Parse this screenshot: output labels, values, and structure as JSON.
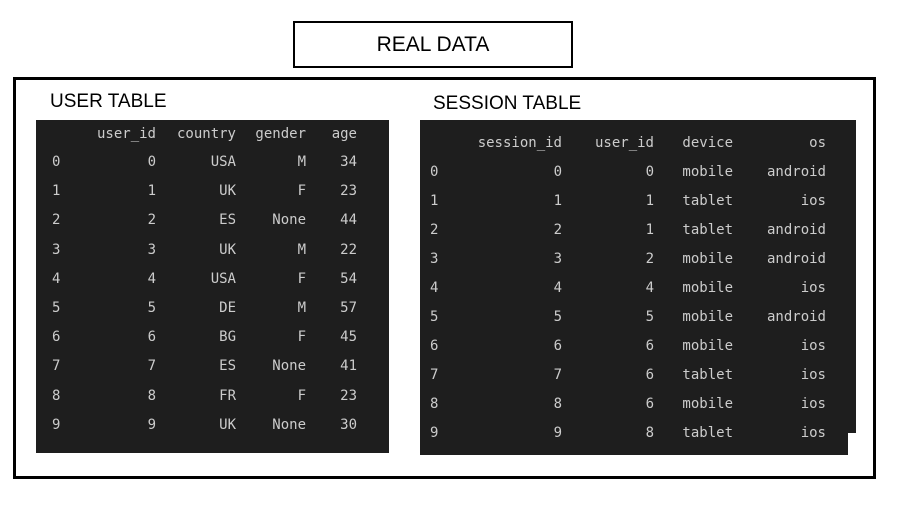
{
  "title": "REAL DATA",
  "user_table": {
    "title": "USER TABLE",
    "columns": [
      "",
      "user_id",
      "country",
      "gender",
      "age"
    ],
    "rows": [
      [
        "0",
        "0",
        "USA",
        "M",
        "34"
      ],
      [
        "1",
        "1",
        "UK",
        "F",
        "23"
      ],
      [
        "2",
        "2",
        "ES",
        "None",
        "44"
      ],
      [
        "3",
        "3",
        "UK",
        "M",
        "22"
      ],
      [
        "4",
        "4",
        "USA",
        "F",
        "54"
      ],
      [
        "5",
        "5",
        "DE",
        "M",
        "57"
      ],
      [
        "6",
        "6",
        "BG",
        "F",
        "45"
      ],
      [
        "7",
        "7",
        "ES",
        "None",
        "41"
      ],
      [
        "8",
        "8",
        "FR",
        "F",
        "23"
      ],
      [
        "9",
        "9",
        "UK",
        "None",
        "30"
      ]
    ]
  },
  "session_table": {
    "title": "SESSION TABLE",
    "columns": [
      "",
      "session_id",
      "user_id",
      "device",
      "os"
    ],
    "rows": [
      [
        "0",
        "0",
        "0",
        "mobile",
        "android"
      ],
      [
        "1",
        "1",
        "1",
        "tablet",
        "ios"
      ],
      [
        "2",
        "2",
        "1",
        "tablet",
        "android"
      ],
      [
        "3",
        "3",
        "2",
        "mobile",
        "android"
      ],
      [
        "4",
        "4",
        "4",
        "mobile",
        "ios"
      ],
      [
        "5",
        "5",
        "5",
        "mobile",
        "android"
      ],
      [
        "6",
        "6",
        "6",
        "mobile",
        "ios"
      ],
      [
        "7",
        "7",
        "6",
        "tablet",
        "ios"
      ],
      [
        "8",
        "8",
        "6",
        "mobile",
        "ios"
      ],
      [
        "9",
        "9",
        "8",
        "tablet",
        "ios"
      ]
    ]
  }
}
